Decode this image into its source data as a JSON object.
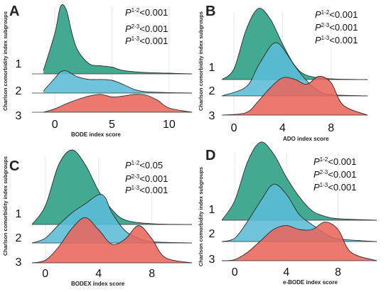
{
  "figure": {
    "y_axis_label": "Charlson comorbidity index subgroups",
    "colors": {
      "group1": "#2a9d82",
      "group2": "#5bbcd6",
      "group3": "#e8675c"
    }
  },
  "chart_data": [
    {
      "panel": "A",
      "type": "ridgeline",
      "xlabel": "BODE index score",
      "ylabel": "Charlson comorbidity index subgroups",
      "xlim": [
        -2,
        12
      ],
      "xticks": [
        0,
        5,
        10
      ],
      "grid": false,
      "groups": [
        "1",
        "2",
        "3"
      ],
      "annotations": [
        {
          "sup": "1-2",
          "text": "<0.001"
        },
        {
          "sup": "2-3",
          "text": "<0.001"
        },
        {
          "sup": "1-3",
          "text": "<0.001"
        }
      ],
      "series": [
        {
          "name": "1",
          "x": [
            -1,
            0,
            0.5,
            1,
            1.5,
            2,
            3,
            4,
            5,
            6,
            8,
            10,
            12
          ],
          "density": [
            0.05,
            0.6,
            1.0,
            0.95,
            0.6,
            0.35,
            0.15,
            0.12,
            0.1,
            0.05,
            0.02,
            0.01,
            0
          ]
        },
        {
          "name": "2",
          "x": [
            -1,
            0,
            0.5,
            1,
            1.5,
            2,
            3,
            4,
            5,
            6,
            7,
            8,
            10,
            12
          ],
          "density": [
            0.05,
            0.35,
            0.5,
            0.52,
            0.45,
            0.38,
            0.32,
            0.32,
            0.3,
            0.2,
            0.08,
            0.03,
            0.01,
            0
          ]
        },
        {
          "name": "3",
          "x": [
            -1,
            0,
            1,
            2,
            3,
            4,
            5,
            6,
            7,
            8,
            9,
            10,
            12
          ],
          "density": [
            0,
            0.08,
            0.2,
            0.3,
            0.38,
            0.42,
            0.36,
            0.38,
            0.42,
            0.4,
            0.28,
            0.1,
            0
          ]
        }
      ]
    },
    {
      "panel": "B",
      "type": "ridgeline",
      "xlabel": "ADO index score",
      "ylabel": "Charlson comorbidity index subgroups",
      "xlim": [
        -1,
        11
      ],
      "xticks": [
        0,
        4,
        8
      ],
      "grid": false,
      "groups": [
        "1",
        "2",
        "3"
      ],
      "annotations": [
        {
          "sup": "1-2",
          "text": "<0.001"
        },
        {
          "sup": "2-3",
          "text": "<0.001"
        },
        {
          "sup": "1-3",
          "text": "<0.001"
        }
      ],
      "series": [
        {
          "name": "1",
          "x": [
            -1,
            0,
            1,
            2,
            3,
            4,
            5,
            6,
            8,
            11
          ],
          "density": [
            0,
            0.15,
            0.7,
            1.0,
            0.85,
            0.5,
            0.2,
            0.06,
            0.01,
            0
          ]
        },
        {
          "name": "2",
          "x": [
            -1,
            1,
            2,
            3,
            3.5,
            4,
            5,
            6,
            7,
            8,
            11
          ],
          "density": [
            0,
            0.15,
            0.5,
            0.82,
            0.88,
            0.8,
            0.5,
            0.25,
            0.08,
            0.02,
            0
          ]
        },
        {
          "name": "3",
          "x": [
            -1,
            1,
            2,
            3,
            4,
            5,
            6,
            7,
            8,
            9,
            11
          ],
          "density": [
            0,
            0.05,
            0.28,
            0.55,
            0.75,
            0.72,
            0.62,
            0.78,
            0.65,
            0.2,
            0
          ]
        }
      ]
    },
    {
      "panel": "C",
      "type": "ridgeline",
      "xlabel": "BODEX index score",
      "ylabel": "Charlson comorbidity index subgroups",
      "xlim": [
        -1,
        11
      ],
      "xticks": [
        0,
        4,
        8
      ],
      "grid": false,
      "groups": [
        "1",
        "2",
        "3"
      ],
      "annotations": [
        {
          "sup": "1-2",
          "text": "<0.05"
        },
        {
          "sup": "2-3",
          "text": "<0.001"
        },
        {
          "sup": "1-3",
          "text": "<0.001"
        }
      ],
      "series": [
        {
          "name": "1",
          "x": [
            -1,
            0,
            1,
            2,
            3,
            4,
            5,
            6,
            8,
            11
          ],
          "density": [
            0,
            0.25,
            0.8,
            1.0,
            0.8,
            0.45,
            0.2,
            0.06,
            0.01,
            0
          ]
        },
        {
          "name": "2",
          "x": [
            -1,
            0,
            1,
            2,
            3,
            4,
            4.5,
            5,
            6,
            7,
            8,
            11
          ],
          "density": [
            0,
            0.08,
            0.3,
            0.5,
            0.65,
            0.8,
            0.75,
            0.5,
            0.2,
            0.08,
            0.02,
            0
          ]
        },
        {
          "name": "3",
          "x": [
            -1,
            0,
            1,
            2,
            3,
            4,
            5,
            6,
            7,
            8,
            9,
            11
          ],
          "density": [
            0,
            0.05,
            0.3,
            0.65,
            0.85,
            0.62,
            0.35,
            0.45,
            0.7,
            0.45,
            0.1,
            0
          ]
        }
      ]
    },
    {
      "panel": "D",
      "type": "ridgeline",
      "xlabel": "e-BODE index score",
      "ylabel": "Charlson comorbidity index subgroups",
      "xlim": [
        -1,
        11
      ],
      "xticks": [
        0,
        4,
        8
      ],
      "grid": false,
      "groups": [
        "1",
        "2",
        "3"
      ],
      "annotations": [
        {
          "sup": "1-2",
          "text": "<0.001"
        },
        {
          "sup": "2-3",
          "text": "<0.001"
        },
        {
          "sup": "1-3",
          "text": "<0.001"
        }
      ],
      "series": [
        {
          "name": "1",
          "x": [
            -1,
            0,
            1,
            2,
            3,
            4,
            5,
            6,
            7,
            8,
            11
          ],
          "density": [
            0,
            0.25,
            0.75,
            1.0,
            0.85,
            0.55,
            0.3,
            0.12,
            0.05,
            0.02,
            0
          ]
        },
        {
          "name": "2",
          "x": [
            -1,
            0,
            1,
            2,
            3,
            4,
            5,
            6,
            7,
            8,
            11
          ],
          "density": [
            0,
            0.05,
            0.3,
            0.6,
            0.85,
            0.7,
            0.4,
            0.25,
            0.12,
            0.04,
            0
          ]
        },
        {
          "name": "3",
          "x": [
            -1,
            0,
            1,
            2,
            3,
            4,
            5,
            6,
            7,
            8,
            9,
            11
          ],
          "density": [
            0,
            0.02,
            0.15,
            0.35,
            0.55,
            0.62,
            0.55,
            0.55,
            0.68,
            0.55,
            0.15,
            0
          ]
        }
      ]
    }
  ]
}
